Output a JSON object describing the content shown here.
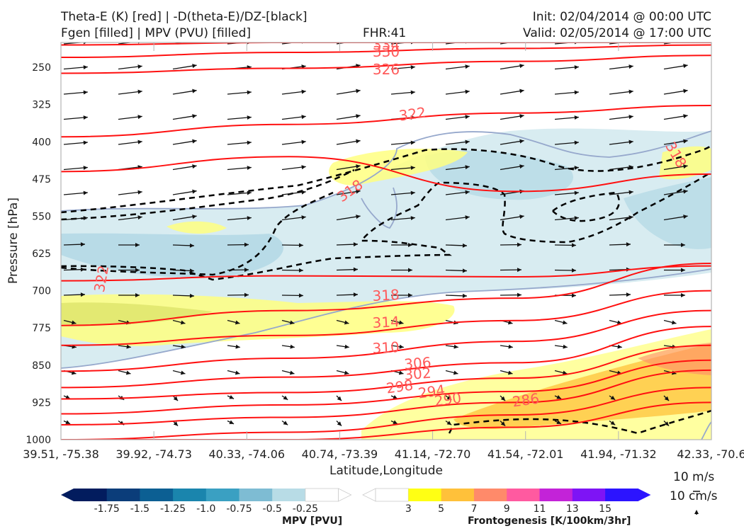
{
  "header": {
    "title_left_line1": "Theta-E (K) [red] | -D(theta-E)/DZ-[black]",
    "title_left_line2": "Fgen [filled] | MPV (PVU) [filled]",
    "fhr": "FHR:41",
    "init": "Init: 02/04/2014 @ 00:00 UTC",
    "valid": "Valid: 02/05/2014 @ 17:00 UTC"
  },
  "chart_data": {
    "type": "cross-section",
    "xlabel": "Latitude,Longitude",
    "ylabel": "Pressure [hPa]",
    "x_ticks": [
      "39.51, -75.38",
      "39.92, -74.73",
      "40.33, -74.06",
      "40.74, -73.39",
      "41.14, -72.70",
      "41.54, -72.01",
      "41.94, -71.32",
      "42.33, -70.6"
    ],
    "y_ticks": [
      250,
      325,
      400,
      475,
      550,
      625,
      700,
      775,
      850,
      925,
      1000
    ],
    "ylim": [
      1000,
      200
    ],
    "theta_e_contours": [
      {
        "label": "334",
        "p": [
          205,
          200,
          200,
          200
        ]
      },
      {
        "label": "330",
        "p": [
          230,
          220,
          212,
          205
        ]
      },
      {
        "label": "326",
        "p": [
          262,
          252,
          238,
          226
        ]
      },
      {
        "label": "322",
        "p": [
          390,
          365,
          342,
          327
        ]
      },
      {
        "label": "318",
        "p": [
          460,
          430,
          500,
          465
        ]
      },
      {
        "label": "322",
        "p": [
          680,
          670,
          672,
          650
        ]
      },
      {
        "label": "318",
        "p": [
          770,
          740,
          715,
          645
        ]
      },
      {
        "label": "314",
        "p": [
          810,
          790,
          760,
          700
        ]
      },
      {
        "label": "310",
        "p": [
          862,
          836,
          802,
          740
        ]
      },
      {
        "label": "306",
        "p": [
          895,
          874,
          845,
          772
        ]
      },
      {
        "label": "302",
        "p": [
          918,
          905,
          876,
          810
        ]
      },
      {
        "label": "298",
        "p": [
          948,
          930,
          903,
          840
        ]
      },
      {
        "label": "294",
        "p": [
          970,
          955,
          925,
          860
        ]
      },
      {
        "label": "290",
        "p": [
          1000,
          985,
          950,
          895
        ]
      },
      {
        "label": "286",
        "p": [
          1000,
          1000,
          975,
          925
        ]
      }
    ],
    "mpv_colorbar": {
      "title": "MPV [PVU]",
      "ticks": [
        "-1.75",
        "-1.5",
        "-1.25",
        "-1.0",
        "-0.75",
        "-0.5",
        "-0.25"
      ],
      "colors": [
        "#021c5e",
        "#0b3d7a",
        "#0c5f93",
        "#1a85ad",
        "#3aa0c2",
        "#7ebcd3",
        "#b8dce6",
        "#ffffff"
      ]
    },
    "fgen_colorbar": {
      "title": "Frontogenesis [K/100km/3hr]",
      "ticks": [
        "3",
        "5",
        "7",
        "9",
        "11",
        "13",
        "15"
      ],
      "colors": [
        "#ffffff",
        "#ffff14",
        "#ffc13a",
        "#ff8a6a",
        "#ff5aa0",
        "#c323d8",
        "#7e14f5",
        "#2c14ff"
      ]
    },
    "wind_scale": {
      "horizontal": "10 m/s",
      "vertical": "10 cm/s"
    },
    "colors": {
      "theta_e": "#ff1010",
      "dthetae_dz": "#000000",
      "frame": "#b5b5b5"
    }
  }
}
